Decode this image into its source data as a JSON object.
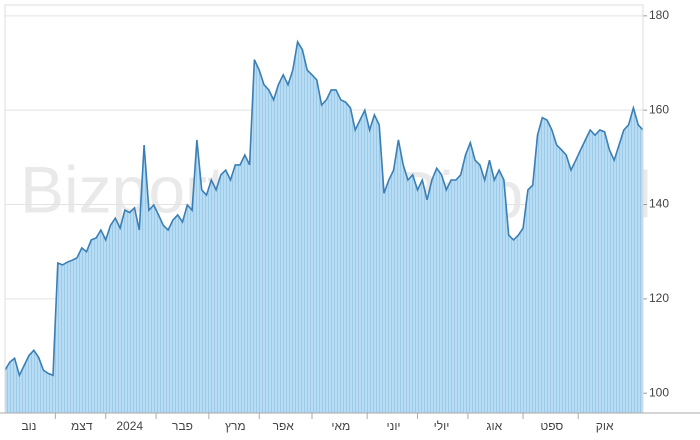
{
  "chart_data": {
    "type": "area",
    "watermark": "Bizportal",
    "categories": [
      null,
      null,
      null,
      null,
      null,
      "נוב",
      null,
      null,
      null,
      null,
      null,
      null,
      null,
      null,
      null,
      null,
      "דצמ",
      null,
      null,
      null,
      null,
      null,
      null,
      null,
      null,
      null,
      "2024",
      null,
      null,
      null,
      null,
      null,
      null,
      null,
      null,
      null,
      null,
      "פבר",
      null,
      null,
      null,
      null,
      null,
      null,
      null,
      null,
      null,
      null,
      "מרץ",
      null,
      null,
      null,
      null,
      null,
      null,
      null,
      null,
      null,
      "אפר",
      null,
      null,
      null,
      null,
      null,
      null,
      null,
      null,
      null,
      null,
      null,
      "מאי",
      null,
      null,
      null,
      null,
      null,
      null,
      null,
      null,
      null,
      null,
      "יוני",
      null,
      null,
      null,
      null,
      null,
      null,
      null,
      null,
      null,
      "יולי",
      null,
      null,
      null,
      null,
      null,
      null,
      null,
      null,
      null,
      null,
      "אוג",
      null,
      null,
      null,
      null,
      null,
      null,
      null,
      null,
      null,
      null,
      null,
      "ספט",
      null,
      null,
      null,
      null,
      null,
      null,
      null,
      null,
      null,
      null,
      "אוק",
      null,
      null,
      null,
      null,
      null,
      null,
      null,
      null
    ],
    "values": [
      104.9,
      106.6,
      107.4,
      103.8,
      105.9,
      108,
      109.1,
      107.6,
      104.9,
      104.2,
      103.8,
      127.6,
      127.2,
      127.8,
      128.2,
      128.7,
      130.8,
      130,
      132.5,
      132.9,
      134.6,
      132.5,
      135.6,
      137.1,
      135,
      138.8,
      138.3,
      139.3,
      134.6,
      152.6,
      138.8,
      139.9,
      137.8,
      135.6,
      134.6,
      136.7,
      137.8,
      136.3,
      139.9,
      138.8,
      153.7,
      143.1,
      142,
      145.2,
      143.1,
      146.3,
      147.3,
      145.2,
      148.4,
      148.4,
      150.5,
      148.4,
      170.7,
      168.5,
      165.4,
      164.3,
      162.2,
      165.4,
      167.5,
      165.4,
      168.5,
      174.5,
      172.8,
      168.5,
      167.5,
      166.4,
      161.1,
      162.2,
      164.3,
      164.3,
      162.2,
      161.7,
      160.5,
      155.8,
      157.9,
      160,
      155.8,
      159,
      156.9,
      142.4,
      145.2,
      147.3,
      153.7,
      148.4,
      145.2,
      146.3,
      143.1,
      145.2,
      141,
      145.2,
      147.7,
      146.3,
      143.1,
      145.2,
      145.2,
      146.3,
      150.5,
      153.1,
      149.4,
      148.4,
      145.2,
      149.4,
      145.2,
      147.3,
      145.2,
      133.5,
      132.5,
      133.5,
      135,
      143.1,
      144.1,
      154.7,
      158.4,
      157.9,
      155.8,
      152.6,
      151.6,
      150.5,
      147.3,
      149.4,
      151.6,
      153.7,
      155.8,
      154.7,
      155.8,
      155.4,
      151.6,
      149.4,
      152.6,
      155.8,
      156.9,
      160.5,
      156.9,
      155.8
    ],
    "color": "#3a7fb5",
    "fill_color": "#a9d3ef",
    "ylim": [
      95.8,
      182.3
    ],
    "yticks": [
      100,
      120,
      140,
      160,
      180
    ],
    "grid": true
  }
}
